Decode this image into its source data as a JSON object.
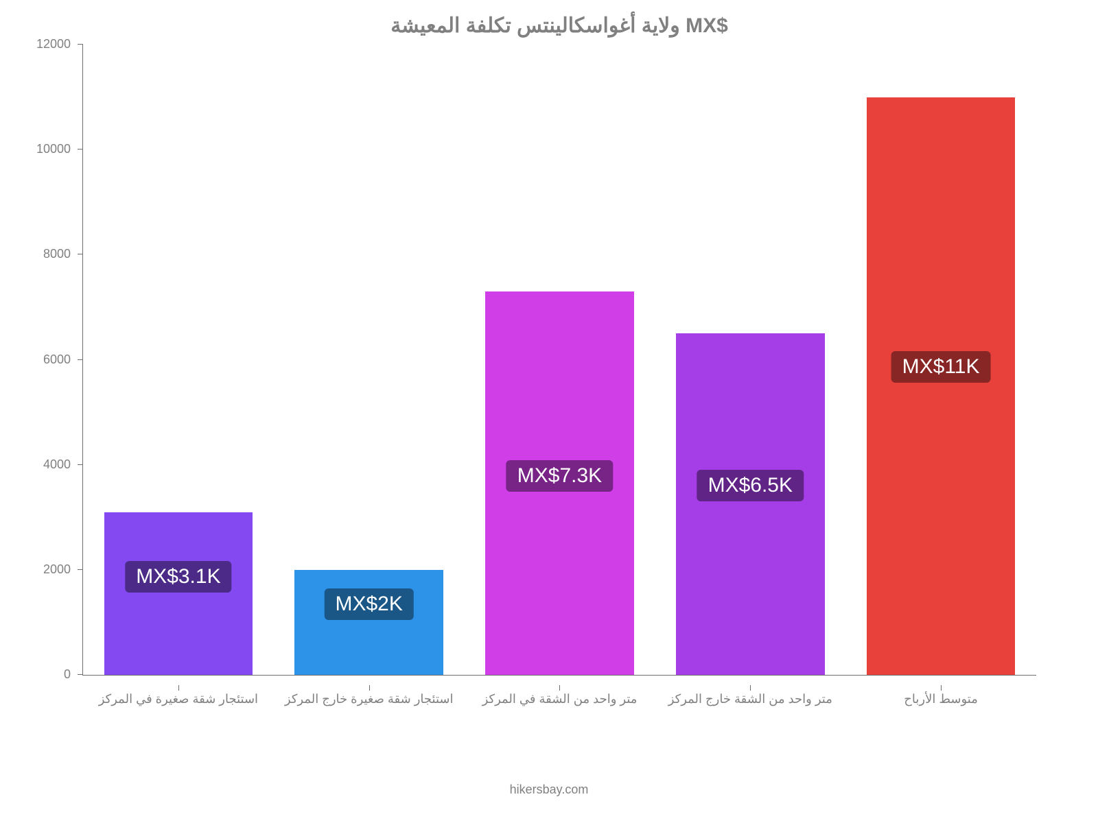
{
  "chart": {
    "type": "bar",
    "title": "ولاية أغواسكالينتس تكلفة المعيشة MX$",
    "title_fontsize": 30,
    "title_color": "#808080",
    "background_color": "#ffffff",
    "axis_color": "#6d6d6d",
    "label_color": "#808080",
    "xlabel_fontsize": 18,
    "ytick_fontsize": 18,
    "ylim": [
      0,
      12000
    ],
    "yticks": [
      0,
      2000,
      4000,
      6000,
      8000,
      10000,
      12000
    ],
    "bar_width": 0.78,
    "categories": [
      "استئجار شقة صغيرة في المركز",
      "استئجار شقة صغيرة خارج المركز",
      "متر واحد من الشقة في المركز",
      "متر واحد من الشقة خارج المركز",
      "متوسط الأرباح"
    ],
    "values": [
      3100,
      2000,
      7300,
      6500,
      11000
    ],
    "bar_colors": [
      "#8549f2",
      "#2c93e8",
      "#d03ee8",
      "#a63ee8",
      "#e8403a"
    ],
    "badge_labels": [
      "MX$3.1K",
      "MX$2K",
      "MX$7.3K",
      "MX$6.5K",
      "MX$11K"
    ],
    "badge_bg_colors": [
      "#4b2b87",
      "#1a5787",
      "#782487",
      "#602487",
      "#872624"
    ],
    "badge_text_color": "#ffffff",
    "badge_fontsize": 30,
    "badge_offsets_pct": [
      -110,
      -70,
      -45,
      -52,
      -45
    ],
    "attribution": "hikersbay.com"
  }
}
